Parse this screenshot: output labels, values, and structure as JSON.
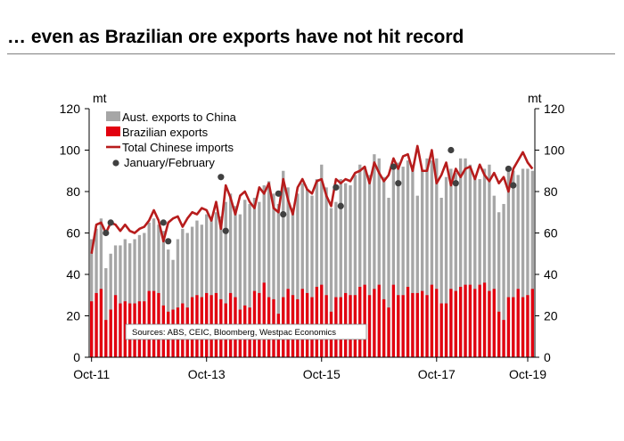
{
  "title": "… even as Brazilian ore exports have not hit record",
  "colors": {
    "aus_bar": "#a6a6a6",
    "brazil_bar": "#e2000f",
    "total_line": "#b71c1c",
    "jan_feb_dot": "#404040"
  },
  "chart_data": {
    "type": "bar",
    "y_unit_left": "mt",
    "y_unit_right": "mt",
    "ylim": [
      0,
      120
    ],
    "y_ticks": [
      "0",
      "20",
      "40",
      "60",
      "80",
      "100",
      "120"
    ],
    "x_tick_labels": [
      "Oct-11",
      "Oct-13",
      "Oct-15",
      "Oct-17",
      "Oct-19"
    ],
    "x_start": "Oct-11",
    "x_end": "Oct-19",
    "legend_position": "top-left",
    "legend": [
      "Aust. exports to China",
      "Brazilian exports",
      "Total Chinese imports",
      "January/February"
    ],
    "annotation": "Sources: ABS, CEIC, Bloomberg, Westpac Economics",
    "series": [
      {
        "name": "Aust. exports to China",
        "type": "bar",
        "values": [
          57,
          62,
          67,
          43,
          50,
          54,
          54,
          57,
          55,
          57,
          59,
          60,
          65,
          67,
          64,
          61,
          52,
          47,
          57,
          62,
          60,
          63,
          66,
          64,
          69,
          67,
          70,
          68,
          75,
          79,
          73,
          69,
          76,
          74,
          77,
          75,
          83,
          85,
          79,
          74,
          90,
          82,
          72,
          79,
          84,
          81,
          78,
          86,
          93,
          82,
          72,
          75,
          86,
          84,
          83,
          88,
          93,
          92,
          88,
          98,
          96,
          87,
          77,
          93,
          94,
          92,
          95,
          93,
          78,
          90,
          96,
          95,
          96,
          77,
          87,
          91,
          89,
          96,
          96,
          93,
          87,
          86,
          91,
          93,
          78,
          70,
          74,
          91,
          90,
          88,
          91,
          91,
          90
        ]
      },
      {
        "name": "Brazilian exports",
        "type": "bar",
        "values": [
          27,
          31,
          33,
          18,
          23,
          30,
          26,
          27,
          26,
          26,
          27,
          27,
          32,
          32,
          31,
          25,
          22,
          23,
          24,
          26,
          24,
          29,
          30,
          29,
          31,
          30,
          31,
          28,
          26,
          31,
          29,
          23,
          25,
          24,
          32,
          31,
          36,
          29,
          28,
          21,
          29,
          33,
          30,
          28,
          33,
          31,
          29,
          34,
          35,
          30,
          22,
          29,
          29,
          31,
          30,
          30,
          34,
          35,
          30,
          33,
          35,
          28,
          24,
          35,
          30,
          30,
          34,
          31,
          31,
          32,
          30,
          35,
          33,
          26,
          26,
          33,
          32,
          34,
          35,
          35,
          33,
          35,
          36,
          32,
          33,
          22,
          18,
          29,
          29,
          33,
          29,
          30,
          33
        ]
      },
      {
        "name": "Total Chinese imports",
        "type": "line",
        "values": [
          50,
          64,
          65,
          60,
          65,
          64,
          61,
          64,
          61,
          60,
          62,
          63,
          66,
          71,
          66,
          56,
          65,
          67,
          68,
          63,
          67,
          70,
          69,
          72,
          71,
          66,
          75,
          62,
          83,
          77,
          69,
          78,
          80,
          75,
          72,
          82,
          79,
          84,
          72,
          70,
          86,
          76,
          69,
          82,
          86,
          81,
          79,
          85,
          86,
          78,
          73,
          86,
          84,
          86,
          85,
          89,
          90,
          92,
          84,
          94,
          89,
          85,
          88,
          96,
          91,
          97,
          98,
          90,
          102,
          90,
          90,
          100,
          84,
          88,
          94,
          83,
          91,
          87,
          91,
          92,
          86,
          93,
          88,
          85,
          89,
          84,
          87,
          80,
          91,
          95,
          99,
          94,
          91
        ]
      },
      {
        "name": "January/February",
        "type": "scatter",
        "points": [
          {
            "x": "Jan-12",
            "y": 60
          },
          {
            "x": "Feb-12",
            "y": 65
          },
          {
            "x": "Jan-13",
            "y": 65
          },
          {
            "x": "Feb-13",
            "y": 56
          },
          {
            "x": "Jan-14",
            "y": 87
          },
          {
            "x": "Feb-14",
            "y": 61
          },
          {
            "x": "Jan-15",
            "y": 79
          },
          {
            "x": "Feb-15",
            "y": 69
          },
          {
            "x": "Jan-16",
            "y": 82
          },
          {
            "x": "Feb-16",
            "y": 73
          },
          {
            "x": "Jan-17",
            "y": 92
          },
          {
            "x": "Feb-17",
            "y": 84
          },
          {
            "x": "Jan-18",
            "y": 100
          },
          {
            "x": "Feb-18",
            "y": 84
          },
          {
            "x": "Jan-19",
            "y": 91
          },
          {
            "x": "Feb-19",
            "y": 83
          }
        ]
      }
    ]
  }
}
